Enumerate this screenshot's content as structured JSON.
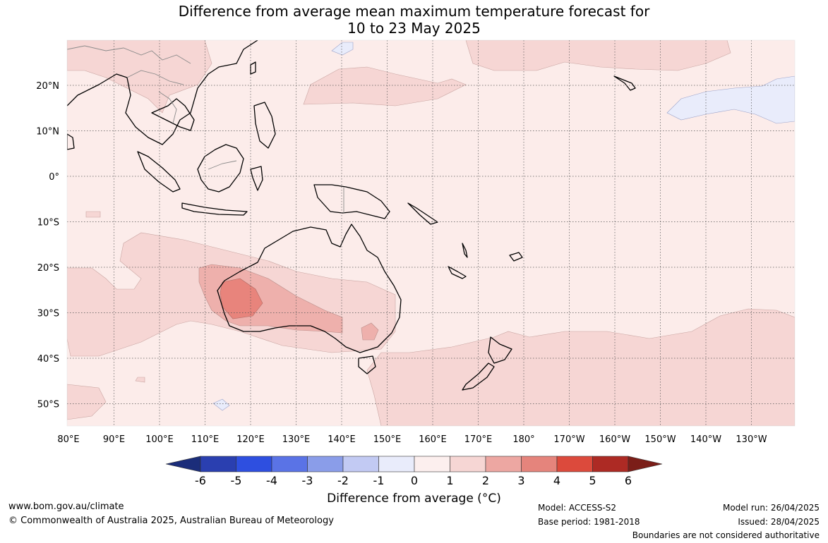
{
  "title": {
    "line1": "Difference from average mean maximum temperature forecast for",
    "line2": "10 to 23 May 2025"
  },
  "axes": {
    "lon_labels": [
      "80°E",
      "90°E",
      "100°E",
      "110°E",
      "120°E",
      "130°E",
      "140°E",
      "150°E",
      "160°E",
      "170°E",
      "180°",
      "170°W",
      "160°W",
      "150°W",
      "140°W",
      "130°W"
    ],
    "lat_labels": [
      "20°N",
      "10°N",
      "0°",
      "10°S",
      "20°S",
      "30°S",
      "40°S",
      "50°S"
    ]
  },
  "colorbar": {
    "title": "Difference from average (°C)",
    "title_text": "Difference from average (",
    "title_unit": "°C",
    "title_end": ")",
    "ticks": [
      "-6",
      "-5",
      "-4",
      "-3",
      "-2",
      "-1",
      "0",
      "1",
      "2",
      "3",
      "4",
      "5",
      "6"
    ],
    "colors": [
      "#1b2d7a",
      "#2a3fb0",
      "#2e4fe0",
      "#5a73e6",
      "#8a9de9",
      "#c2caf3",
      "#e9ecfb",
      "#fcefee",
      "#f6d6d4",
      "#eda7a2",
      "#e5847c",
      "#dc4a3c",
      "#ad2a24",
      "#7b1e18"
    ]
  },
  "colors": {
    "ocean_base": "#fcecea",
    "band_1_2": "#f6d6d4",
    "band_2_3": "#eeb0ac",
    "band_3_4": "#e8847c",
    "band_neg": "#e9ecfb",
    "coast": "#000000"
  },
  "footer": {
    "url": "www.bom.gov.au/climate",
    "copyright": "© Commonwealth of Australia 2025, Australian Bureau of Meteorology",
    "model": "Model: ACCESS-S2",
    "base_period": "Base period: 1981-2018",
    "model_run": "Model run: 26/04/2025",
    "issued": "Issued: 28/04/2025",
    "disclaimer": "Boundaries are not considered authoritative"
  }
}
